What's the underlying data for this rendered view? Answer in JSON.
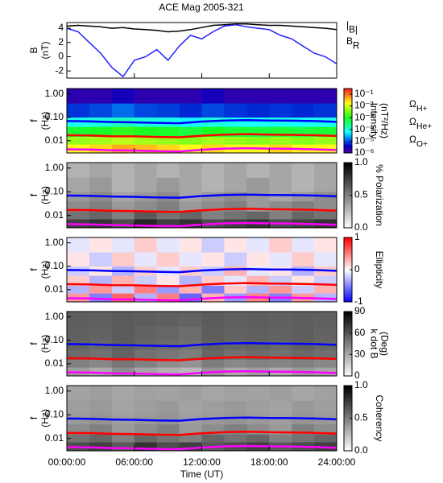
{
  "chart_data": [
    {
      "type": "line",
      "title": "ACE Mag 2005-321",
      "y_label": [
        "B",
        "(nT)"
      ],
      "ylim": [
        -3.0,
        4.8
      ],
      "yticks": [
        -2,
        0,
        2,
        4
      ],
      "x": [
        0,
        1,
        2,
        3,
        4,
        5,
        6,
        7,
        8,
        9,
        10,
        11,
        12,
        13,
        14,
        15,
        16,
        17,
        18,
        19,
        20,
        21,
        22,
        23,
        24
      ],
      "series": [
        {
          "name": "|B|",
          "color": "#000000",
          "values": [
            4.3,
            4.4,
            4.3,
            4.2,
            4.0,
            4.1,
            3.9,
            3.8,
            3.7,
            3.5,
            3.6,
            3.8,
            4.1,
            4.4,
            4.5,
            4.6,
            4.6,
            4.5,
            4.4,
            4.4,
            4.3,
            4.2,
            4.1,
            4.0,
            3.8
          ]
        },
        {
          "name": "BR",
          "color": "#2020ff",
          "values": [
            4.0,
            3.5,
            2.0,
            0.5,
            -1.5,
            -2.8,
            -0.5,
            0.0,
            1.0,
            -0.5,
            1.5,
            3.0,
            2.5,
            3.5,
            4.3,
            4.5,
            4.2,
            4.0,
            3.8,
            3.0,
            2.5,
            1.5,
            0.5,
            0.0,
            -1.0
          ]
        }
      ]
    },
    {
      "type": "heatmap",
      "y_label": [
        "f",
        "(Hz)"
      ],
      "ylog": true,
      "ylim": [
        0.003,
        1.7
      ],
      "yticks": [
        {
          "value": 1,
          "label": "1.00"
        },
        {
          "value": 0.1,
          "label": "0.10"
        },
        0.01
      ],
      "x_edges": [
        0,
        2,
        4,
        6,
        8,
        10,
        12,
        14,
        16,
        18,
        20,
        22,
        24
      ],
      "f_edges": [
        0.003,
        0.007,
        0.015,
        0.04,
        0.1,
        0.4,
        1.7
      ],
      "z": [
        [
          0.02,
          0.03,
          0.05,
          0.04,
          0.03,
          0.02,
          0.03,
          0.02,
          0.02,
          0.03,
          0.02,
          0.02
        ],
        [
          0.005,
          0.006,
          0.008,
          0.006,
          0.005,
          0.004,
          0.006,
          0.005,
          0.004,
          0.005,
          0.004,
          0.005
        ],
        [
          0.0008,
          0.001,
          0.0015,
          0.001,
          0.0009,
          0.0007,
          0.001,
          0.0008,
          0.0007,
          0.0008,
          0.0007,
          0.0008
        ],
        [
          8e-05,
          0.0001,
          0.00015,
          0.0001,
          9e-05,
          6e-05,
          0.0001,
          8e-05,
          7e-05,
          8e-05,
          7e-05,
          8e-05
        ],
        [
          8e-06,
          1e-05,
          1.5e-05,
          1e-05,
          9e-06,
          7e-06,
          1e-05,
          8e-06,
          7e-06,
          8e-06,
          7e-06,
          8e-06
        ],
        [
          2e-06,
          2e-06,
          3e-06,
          2e-06,
          2e-06,
          2e-06,
          3e-06,
          2e-06,
          2e-06,
          2e-06,
          2e-06,
          2e-06
        ]
      ],
      "colormap": "rainbow",
      "zlog": true,
      "zlim": [
        1e-06,
        0.3
      ],
      "zticks": [
        {
          "value": 0.1,
          "label": "10⁻¹"
        },
        {
          "value": 0.01,
          "label": "10⁻²"
        },
        {
          "value": 0.001,
          "label": "10⁻³"
        },
        {
          "value": 0.0001,
          "label": "10⁻⁴"
        },
        {
          "value": 1e-05,
          "label": "10⁻⁵"
        },
        {
          "value": 1e-06,
          "label": "10⁻⁶"
        }
      ],
      "colorbar_label": [
        "Intensity",
        "(nT²/Hz)"
      ],
      "x": [
        0,
        2,
        4,
        6,
        8,
        10,
        12,
        14,
        16,
        18,
        20,
        22,
        24
      ],
      "series": [
        {
          "name": "ΩH+",
          "color": "#0000ff",
          "values": [
            0.069,
            0.067,
            0.063,
            0.061,
            0.058,
            0.056,
            0.066,
            0.073,
            0.076,
            0.073,
            0.072,
            0.069,
            0.064
          ]
        },
        {
          "name": "ΩHe+",
          "color": "#ff0000",
          "values": [
            0.0172,
            0.0168,
            0.0156,
            0.0153,
            0.0145,
            0.0141,
            0.0164,
            0.0183,
            0.0191,
            0.0183,
            0.0179,
            0.0172,
            0.016
          ]
        },
        {
          "name": "ΩO+",
          "color": "#ff00ff",
          "values": [
            0.0043,
            0.0042,
            0.0039,
            0.0038,
            0.0036,
            0.0035,
            0.0041,
            0.0046,
            0.0048,
            0.0046,
            0.0045,
            0.0043,
            0.004
          ]
        }
      ]
    },
    {
      "type": "heatmap",
      "y_label": [
        "f",
        "(Hz)"
      ],
      "ylog": true,
      "ylim": [
        0.003,
        1.7
      ],
      "yticks": [
        {
          "value": 1,
          "label": "1.00"
        },
        {
          "value": 0.1,
          "label": "0.10"
        },
        0.01
      ],
      "x_edges": [
        0,
        2,
        4,
        6,
        8,
        10,
        12,
        14,
        16,
        18,
        20,
        22,
        24
      ],
      "f_edges": [
        0.003,
        0.007,
        0.015,
        0.04,
        0.1,
        0.4,
        1.7
      ],
      "z": [
        [
          0.75,
          0.8,
          0.7,
          0.85,
          0.75,
          0.8,
          0.7,
          0.75,
          0.8,
          0.7,
          0.75,
          0.8
        ],
        [
          0.55,
          0.6,
          0.5,
          0.65,
          0.55,
          0.6,
          0.5,
          0.55,
          0.6,
          0.5,
          0.6,
          0.55
        ],
        [
          0.45,
          0.5,
          0.4,
          0.45,
          0.5,
          0.4,
          0.45,
          0.5,
          0.4,
          0.45,
          0.5,
          0.45
        ],
        [
          0.4,
          0.45,
          0.35,
          0.4,
          0.45,
          0.35,
          0.4,
          0.45,
          0.4,
          0.35,
          0.4,
          0.45
        ],
        [
          0.35,
          0.4,
          0.3,
          0.35,
          0.4,
          0.35,
          0.3,
          0.35,
          0.4,
          0.35,
          0.3,
          0.35
        ],
        [
          0.3,
          0.35,
          0.3,
          0.35,
          0.3,
          0.35,
          0.3,
          0.35,
          0.3,
          0.35,
          0.3,
          0.35
        ]
      ],
      "colormap": "gray",
      "zlog": false,
      "zlim": [
        0,
        1
      ],
      "zticks": [
        {
          "value": 0,
          "label": "0.0"
        },
        {
          "value": 0.5,
          "label": "0.5"
        },
        {
          "value": 1,
          "label": "1.0"
        }
      ],
      "colorbar_label": [
        "% Polarization"
      ]
    },
    {
      "type": "heatmap",
      "y_label": [
        "f",
        "(Hz)"
      ],
      "ylog": true,
      "ylim": [
        0.003,
        1.7
      ],
      "yticks": [
        {
          "value": 1,
          "label": "1.00"
        },
        {
          "value": 0.1,
          "label": "0.10"
        },
        0.01
      ],
      "x_edges": [
        0,
        2,
        4,
        6,
        8,
        10,
        12,
        14,
        16,
        18,
        20,
        22,
        24
      ],
      "f_edges": [
        0.003,
        0.007,
        0.015,
        0.04,
        0.1,
        0.4,
        1.7
      ],
      "z": [
        [
          0.4,
          -0.5,
          0.6,
          -0.3,
          0.5,
          -0.6,
          0.3,
          -0.4,
          0.5,
          -0.5,
          0.4,
          -0.3
        ],
        [
          -0.3,
          0.4,
          -0.2,
          0.5,
          -0.4,
          0.3,
          -0.5,
          0.2,
          -0.3,
          0.4,
          -0.2,
          0.3
        ],
        [
          0.2,
          -0.3,
          0.3,
          -0.2,
          0.1,
          -0.3,
          0.2,
          -0.1,
          0.3,
          -0.2,
          0.1,
          -0.2
        ],
        [
          -0.2,
          0.1,
          -0.3,
          0.2,
          -0.1,
          0.2,
          -0.2,
          0.3,
          -0.1,
          0.1,
          -0.3,
          0.2
        ],
        [
          0.1,
          -0.2,
          0.2,
          -0.1,
          0.2,
          -0.1,
          0.1,
          -0.2,
          0.1,
          -0.1,
          0.2,
          -0.1
        ],
        [
          -0.1,
          0.1,
          -0.1,
          0.2,
          -0.1,
          0.1,
          -0.2,
          0.1,
          -0.1,
          0.2,
          -0.1,
          0.1
        ]
      ],
      "colormap": "bwr",
      "zlog": false,
      "zlim": [
        -1,
        1
      ],
      "zticks": [
        -1,
        0,
        1
      ],
      "colorbar_label": [
        "Ellipticity"
      ]
    },
    {
      "type": "heatmap",
      "y_label": [
        "f",
        "(Hz)"
      ],
      "ylog": true,
      "ylim": [
        0.003,
        1.7
      ],
      "yticks": [
        {
          "value": 1,
          "label": "1.00"
        },
        {
          "value": 0.1,
          "label": "0.10"
        },
        0.01
      ],
      "x_edges": [
        0,
        2,
        4,
        6,
        8,
        10,
        12,
        14,
        16,
        18,
        20,
        22,
        24
      ],
      "f_edges": [
        0.003,
        0.007,
        0.015,
        0.04,
        0.1,
        0.4,
        1.7
      ],
      "z": [
        [
          35,
          30,
          40,
          32,
          28,
          25,
          38,
          30,
          34,
          30,
          36,
          32
        ],
        [
          45,
          42,
          48,
          44,
          40,
          38,
          46,
          42,
          44,
          43,
          45,
          42
        ],
        [
          52,
          50,
          55,
          50,
          48,
          46,
          54,
          50,
          52,
          50,
          53,
          51
        ],
        [
          55,
          53,
          57,
          54,
          52,
          50,
          56,
          54,
          55,
          53,
          56,
          54
        ],
        [
          56,
          55,
          58,
          55,
          54,
          52,
          57,
          55,
          56,
          55,
          57,
          55
        ],
        [
          57,
          56,
          58,
          57,
          56,
          55,
          58,
          56,
          57,
          56,
          57,
          56
        ]
      ],
      "colormap": "gray",
      "zlog": false,
      "zlim": [
        0,
        90
      ],
      "zticks": [
        0,
        30,
        60,
        90
      ],
      "colorbar_label": [
        "k dot B",
        "(Deg)"
      ]
    },
    {
      "type": "heatmap",
      "y_label": [
        "f",
        "(Hz)"
      ],
      "ylog": true,
      "ylim": [
        0.003,
        1.7
      ],
      "yticks": [
        {
          "value": 1,
          "label": "1.00"
        },
        {
          "value": 0.1,
          "label": "0.10"
        },
        0.01
      ],
      "x_edges": [
        0,
        2,
        4,
        6,
        8,
        10,
        12,
        14,
        16,
        18,
        20,
        22,
        24
      ],
      "f_edges": [
        0.003,
        0.007,
        0.015,
        0.04,
        0.1,
        0.4,
        1.7
      ],
      "z": [
        [
          0.7,
          0.75,
          0.65,
          0.8,
          0.7,
          0.75,
          0.65,
          0.7,
          0.75,
          0.65,
          0.7,
          0.75
        ],
        [
          0.55,
          0.6,
          0.5,
          0.6,
          0.55,
          0.5,
          0.6,
          0.55,
          0.6,
          0.5,
          0.55,
          0.6
        ],
        [
          0.45,
          0.5,
          0.4,
          0.45,
          0.5,
          0.4,
          0.45,
          0.5,
          0.45,
          0.4,
          0.5,
          0.45
        ],
        [
          0.4,
          0.42,
          0.38,
          0.4,
          0.42,
          0.38,
          0.4,
          0.42,
          0.4,
          0.38,
          0.42,
          0.4
        ],
        [
          0.38,
          0.4,
          0.36,
          0.38,
          0.4,
          0.36,
          0.38,
          0.4,
          0.38,
          0.36,
          0.4,
          0.38
        ],
        [
          0.36,
          0.38,
          0.35,
          0.37,
          0.36,
          0.38,
          0.35,
          0.37,
          0.36,
          0.38,
          0.35,
          0.37
        ]
      ],
      "colormap": "gray",
      "zlog": false,
      "zlim": [
        0,
        1
      ],
      "zticks": [
        {
          "value": 0,
          "label": "0.0"
        },
        {
          "value": 0.5,
          "label": "0.5"
        },
        {
          "value": 1,
          "label": "1.0"
        }
      ],
      "colorbar_label": [
        "Coherency"
      ],
      "xlim": [
        0,
        24
      ],
      "xticks": [
        {
          "value": 0,
          "label": "00:00:00"
        },
        {
          "value": 6,
          "label": "06:00:00"
        },
        {
          "value": 12,
          "label": "12:00:00"
        },
        {
          "value": 18,
          "label": "18:00:00"
        },
        {
          "value": 24,
          "label": "24:00:00"
        }
      ],
      "x_label": "Time (UT)"
    }
  ]
}
